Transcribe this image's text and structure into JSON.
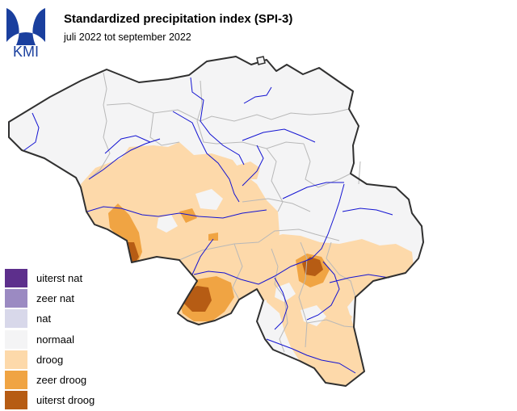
{
  "logo": {
    "text": "KMI",
    "primary_color": "#1a3f9e"
  },
  "header": {
    "title": "Standardized precipitation index (SPI-3)",
    "subtitle": "juli 2022 tot september 2022"
  },
  "colors": {
    "background": "#f4f4f5",
    "border": "#303030",
    "province": "#b8b8b8",
    "river": "#1414d2"
  },
  "legend": [
    {
      "label": "uiterst nat",
      "color": "#5d2f8c"
    },
    {
      "label": "zeer nat",
      "color": "#9b8ac2"
    },
    {
      "label": "nat",
      "color": "#d8d8ea"
    },
    {
      "label": "normaal",
      "color": "#f4f4f5"
    },
    {
      "label": "droog",
      "color": "#fdd9aa"
    },
    {
      "label": "zeer droog",
      "color": "#f0a443"
    },
    {
      "label": "uiterst droog",
      "color": "#b65c14"
    }
  ]
}
